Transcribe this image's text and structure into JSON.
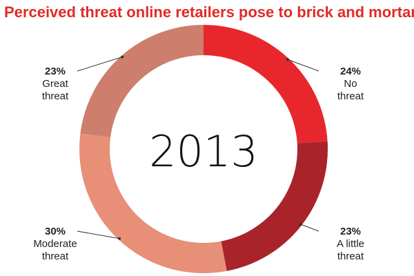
{
  "chart_data": {
    "type": "pie",
    "title": "Perceived threat online retailers pose to brick and mortars",
    "center_label": "2013",
    "slices": [
      {
        "name": "No threat",
        "line1": "No",
        "line2": "threat",
        "value": 24,
        "value_label": "24%",
        "color": "#e8272d"
      },
      {
        "name": "A little threat",
        "line1": "A little",
        "line2": "threat",
        "value": 23,
        "value_label": "23%",
        "color": "#a8232a"
      },
      {
        "name": "Moderate threat",
        "line1": "Moderate",
        "line2": "threat",
        "value": 30,
        "value_label": "30%",
        "color": "#e88f78"
      },
      {
        "name": "Great threat",
        "line1": "Great",
        "line2": "threat",
        "value": 23,
        "value_label": "23%",
        "color": "#cd7e6c"
      }
    ],
    "title_color": "#e02b27",
    "center_text_color": "#111111"
  }
}
